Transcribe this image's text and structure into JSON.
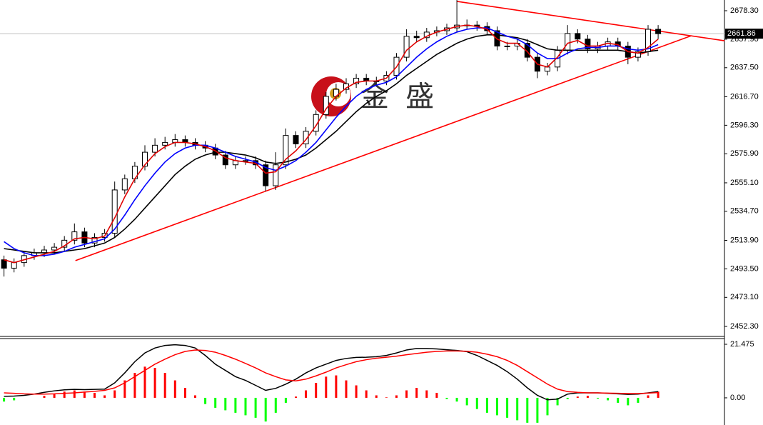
{
  "chart_data": [
    {
      "type": "candlestick",
      "watermark": "金 盛",
      "open": [
        2500,
        2494,
        2498,
        2503,
        2505,
        2507,
        2509,
        2514,
        2520,
        2512,
        2516,
        2519,
        2550,
        2558,
        2567,
        2577,
        2582,
        2584,
        2586,
        2584,
        2582,
        2580,
        2575,
        2568,
        2571,
        2571,
        2568,
        2553,
        2568,
        2589,
        2583,
        2592,
        2604,
        2617,
        2622,
        2626,
        2630,
        2628,
        2628,
        2632,
        2645,
        2660,
        2659,
        2663,
        2664,
        2666,
        2668,
        2668,
        2667,
        2664,
        2653,
        2653,
        2655,
        2645,
        2635,
        2638,
        2650,
        2662,
        2658,
        2651,
        2653,
        2656,
        2653,
        2645,
        2649,
        2665
      ],
      "high": [
        2503,
        2501,
        2506,
        2508,
        2510,
        2512,
        2517,
        2526,
        2523,
        2519,
        2522,
        2556,
        2561,
        2570,
        2582,
        2587,
        2588,
        2590,
        2589,
        2587,
        2585,
        2583,
        2578,
        2574,
        2574,
        2574,
        2571,
        2577,
        2594,
        2592,
        2595,
        2607,
        2620,
        2626,
        2630,
        2633,
        2633,
        2631,
        2635,
        2648,
        2665,
        2664,
        2666,
        2667,
        2669,
        2686,
        2672,
        2671,
        2670,
        2667,
        2656,
        2658,
        2658,
        2648,
        2641,
        2653,
        2668,
        2665,
        2661,
        2656,
        2659,
        2659,
        2656,
        2652,
        2668,
        2668
      ],
      "low": [
        2488,
        2491,
        2495,
        2500,
        2502,
        2504,
        2506,
        2511,
        2509,
        2509,
        2513,
        2516,
        2547,
        2555,
        2564,
        2574,
        2579,
        2581,
        2581,
        2579,
        2577,
        2572,
        2565,
        2565,
        2568,
        2565,
        2549,
        2550,
        2565,
        2580,
        2580,
        2589,
        2601,
        2614,
        2619,
        2623,
        2625,
        2625,
        2625,
        2629,
        2642,
        2656,
        2656,
        2660,
        2661,
        2663,
        2665,
        2664,
        2661,
        2650,
        2650,
        2650,
        2642,
        2630,
        2632,
        2635,
        2647,
        2655,
        2648,
        2648,
        2650,
        2650,
        2640,
        2642,
        2646,
        2658
      ],
      "close": [
        2494,
        2498,
        2503,
        2505,
        2507,
        2509,
        2514,
        2520,
        2512,
        2516,
        2519,
        2550,
        2558,
        2567,
        2577,
        2582,
        2584,
        2586,
        2584,
        2582,
        2580,
        2575,
        2568,
        2571,
        2571,
        2568,
        2553,
        2568,
        2589,
        2583,
        2592,
        2604,
        2617,
        2622,
        2626,
        2630,
        2628,
        2628,
        2632,
        2645,
        2660,
        2659,
        2663,
        2664,
        2666,
        2668,
        2668,
        2667,
        2664,
        2653,
        2653,
        2655,
        2645,
        2635,
        2638,
        2650,
        2662,
        2658,
        2651,
        2653,
        2656,
        2653,
        2645,
        2649,
        2665,
        2661.86
      ],
      "up_color": "#ffffff",
      "down_color": "#000000",
      "lines": [
        {
          "color": "#000000",
          "values": [
            2508,
            2507,
            2506,
            2505,
            2505,
            2505,
            2506,
            2507,
            2508,
            2510,
            2512,
            2516,
            2522,
            2529,
            2537,
            2545,
            2553,
            2561,
            2567,
            2572,
            2575,
            2577,
            2577,
            2576,
            2575,
            2573,
            2570,
            2569,
            2570,
            2572,
            2575,
            2580,
            2586,
            2592,
            2599,
            2606,
            2612,
            2617,
            2621,
            2626,
            2632,
            2637,
            2642,
            2647,
            2651,
            2655,
            2658,
            2660,
            2661,
            2661,
            2660,
            2659,
            2657,
            2654,
            2651,
            2650,
            2650,
            2650,
            2650,
            2650,
            2650,
            2650,
            2649,
            2648,
            2649,
            2650
          ]
        },
        {
          "color": "#0000ff",
          "values": [
            2513,
            2508,
            2505,
            2503,
            2503,
            2504,
            2506,
            2509,
            2511,
            2513,
            2515,
            2522,
            2532,
            2543,
            2553,
            2562,
            2570,
            2576,
            2580,
            2582,
            2582,
            2580,
            2577,
            2574,
            2572,
            2570,
            2566,
            2564,
            2567,
            2571,
            2577,
            2584,
            2593,
            2602,
            2610,
            2617,
            2622,
            2625,
            2627,
            2631,
            2638,
            2645,
            2651,
            2656,
            2660,
            2663,
            2665,
            2666,
            2666,
            2663,
            2660,
            2658,
            2654,
            2648,
            2644,
            2644,
            2648,
            2651,
            2652,
            2652,
            2653,
            2653,
            2651,
            2650,
            2651,
            2654
          ]
        },
        {
          "color": "#e00000",
          "values": [
            2500,
            2498,
            2500,
            2502,
            2504,
            2506,
            2510,
            2515,
            2516,
            2515,
            2517,
            2530,
            2545,
            2558,
            2568,
            2576,
            2581,
            2584,
            2584,
            2583,
            2581,
            2578,
            2573,
            2571,
            2570,
            2569,
            2562,
            2563,
            2572,
            2578,
            2586,
            2596,
            2608,
            2617,
            2623,
            2627,
            2628,
            2628,
            2630,
            2638,
            2650,
            2656,
            2660,
            2663,
            2665,
            2667,
            2668,
            2667,
            2665,
            2658,
            2655,
            2655,
            2649,
            2640,
            2638,
            2645,
            2655,
            2657,
            2653,
            2653,
            2655,
            2654,
            2649,
            2648,
            2652,
            2658
          ]
        }
      ],
      "trendlines": [
        {
          "color": "#ff0000",
          "x": [
            7.1,
            68.3
          ],
          "y": [
            2499.4,
            2660.4
          ]
        },
        {
          "color": "#ff0000",
          "x": [
            45,
            71.6
          ],
          "y": [
            2685,
            2656.8
          ]
        }
      ],
      "last_price": 2661.86,
      "ylim": [
        2445.65,
        2685.97
      ],
      "yticks": [
        {
          "value": 2678.3,
          "label": "2678.30"
        },
        {
          "value": 2657.9,
          "label": "2657.90"
        },
        {
          "value": 2637.5,
          "label": "2637.50"
        },
        {
          "value": 2616.7,
          "label": "2616.70"
        },
        {
          "value": 2596.3,
          "label": "2596.30"
        },
        {
          "value": 2575.9,
          "label": "2575.90"
        },
        {
          "value": 2555.1,
          "label": "2555.10"
        },
        {
          "value": 2534.7,
          "label": "2534.70"
        },
        {
          "value": 2513.9,
          "label": "2513.90"
        },
        {
          "value": 2493.5,
          "label": "2493.50"
        },
        {
          "value": 2473.1,
          "label": "2473.10"
        },
        {
          "value": 2452.3,
          "label": "2452.30"
        }
      ]
    },
    {
      "type": "macd",
      "histogram": [
        -1.5,
        -1,
        0,
        0,
        0.8,
        1.5,
        2.5,
        3,
        2.5,
        2,
        1,
        3,
        7,
        10,
        12.5,
        12,
        10,
        7,
        4,
        1,
        -2.5,
        -4,
        -5,
        -6,
        -7,
        -8,
        -9.5,
        -6,
        -2,
        0.5,
        3,
        6,
        8.5,
        9,
        7,
        5,
        3,
        1,
        0.2,
        1,
        3,
        4,
        3,
        2,
        -0.5,
        -1.5,
        -3,
        -4.5,
        -6,
        -7,
        -8,
        -9,
        -10,
        -10,
        -7,
        -3,
        -0.5,
        0.5,
        0.8,
        -0.3,
        -1,
        -2,
        -3,
        -2,
        1,
        2.5
      ],
      "macd": [
        0.6,
        0.7,
        1,
        1.5,
        2.2,
        2.8,
        3.2,
        3.4,
        3.3,
        3.4,
        3.5,
        6,
        10,
        14.5,
        18,
        20,
        21,
        21.3,
        21,
        20,
        17,
        13.5,
        11,
        8.5,
        7,
        5,
        3,
        3.8,
        5.5,
        7.5,
        10,
        12,
        13.5,
        15,
        15.8,
        16.2,
        16.3,
        16.5,
        17,
        18,
        19.2,
        19.8,
        19.8,
        19.6,
        19.3,
        19,
        18.5,
        17,
        15,
        13,
        10.5,
        7.5,
        4,
        1,
        -0.8,
        -0.5,
        1.5,
        2,
        2,
        2,
        1.8,
        1.6,
        1.4,
        1.5,
        2,
        2.5
      ],
      "signal": [
        2,
        1.8,
        1.6,
        1.5,
        1.5,
        1.6,
        1.8,
        2,
        2.3,
        2.6,
        3,
        4,
        6,
        8.5,
        11,
        13.5,
        15.5,
        17.3,
        18.6,
        19.2,
        19,
        18.3,
        17,
        15.5,
        13.8,
        12,
        10,
        8.5,
        7.2,
        6.8,
        7.5,
        8.8,
        10.3,
        12,
        13.3,
        14.5,
        15.3,
        15.9,
        16.3,
        16.7,
        17.3,
        17.8,
        18.3,
        18.6,
        18.8,
        18.8,
        18.7,
        18.3,
        17.5,
        16.5,
        15,
        13,
        10.5,
        8,
        5.5,
        3.5,
        2.5,
        2.2,
        2,
        2,
        1.9,
        1.8,
        1.7,
        1.7,
        1.9,
        2.1
      ],
      "up_color": "#ff0000",
      "down_color": "#00ff00",
      "macd_color": "#000000",
      "signal_color": "#ff0000",
      "ylim": [
        -10.9,
        23.77
      ],
      "yticks": [
        {
          "value": 0,
          "label": "0.00"
        },
        21.475
      ]
    }
  ]
}
